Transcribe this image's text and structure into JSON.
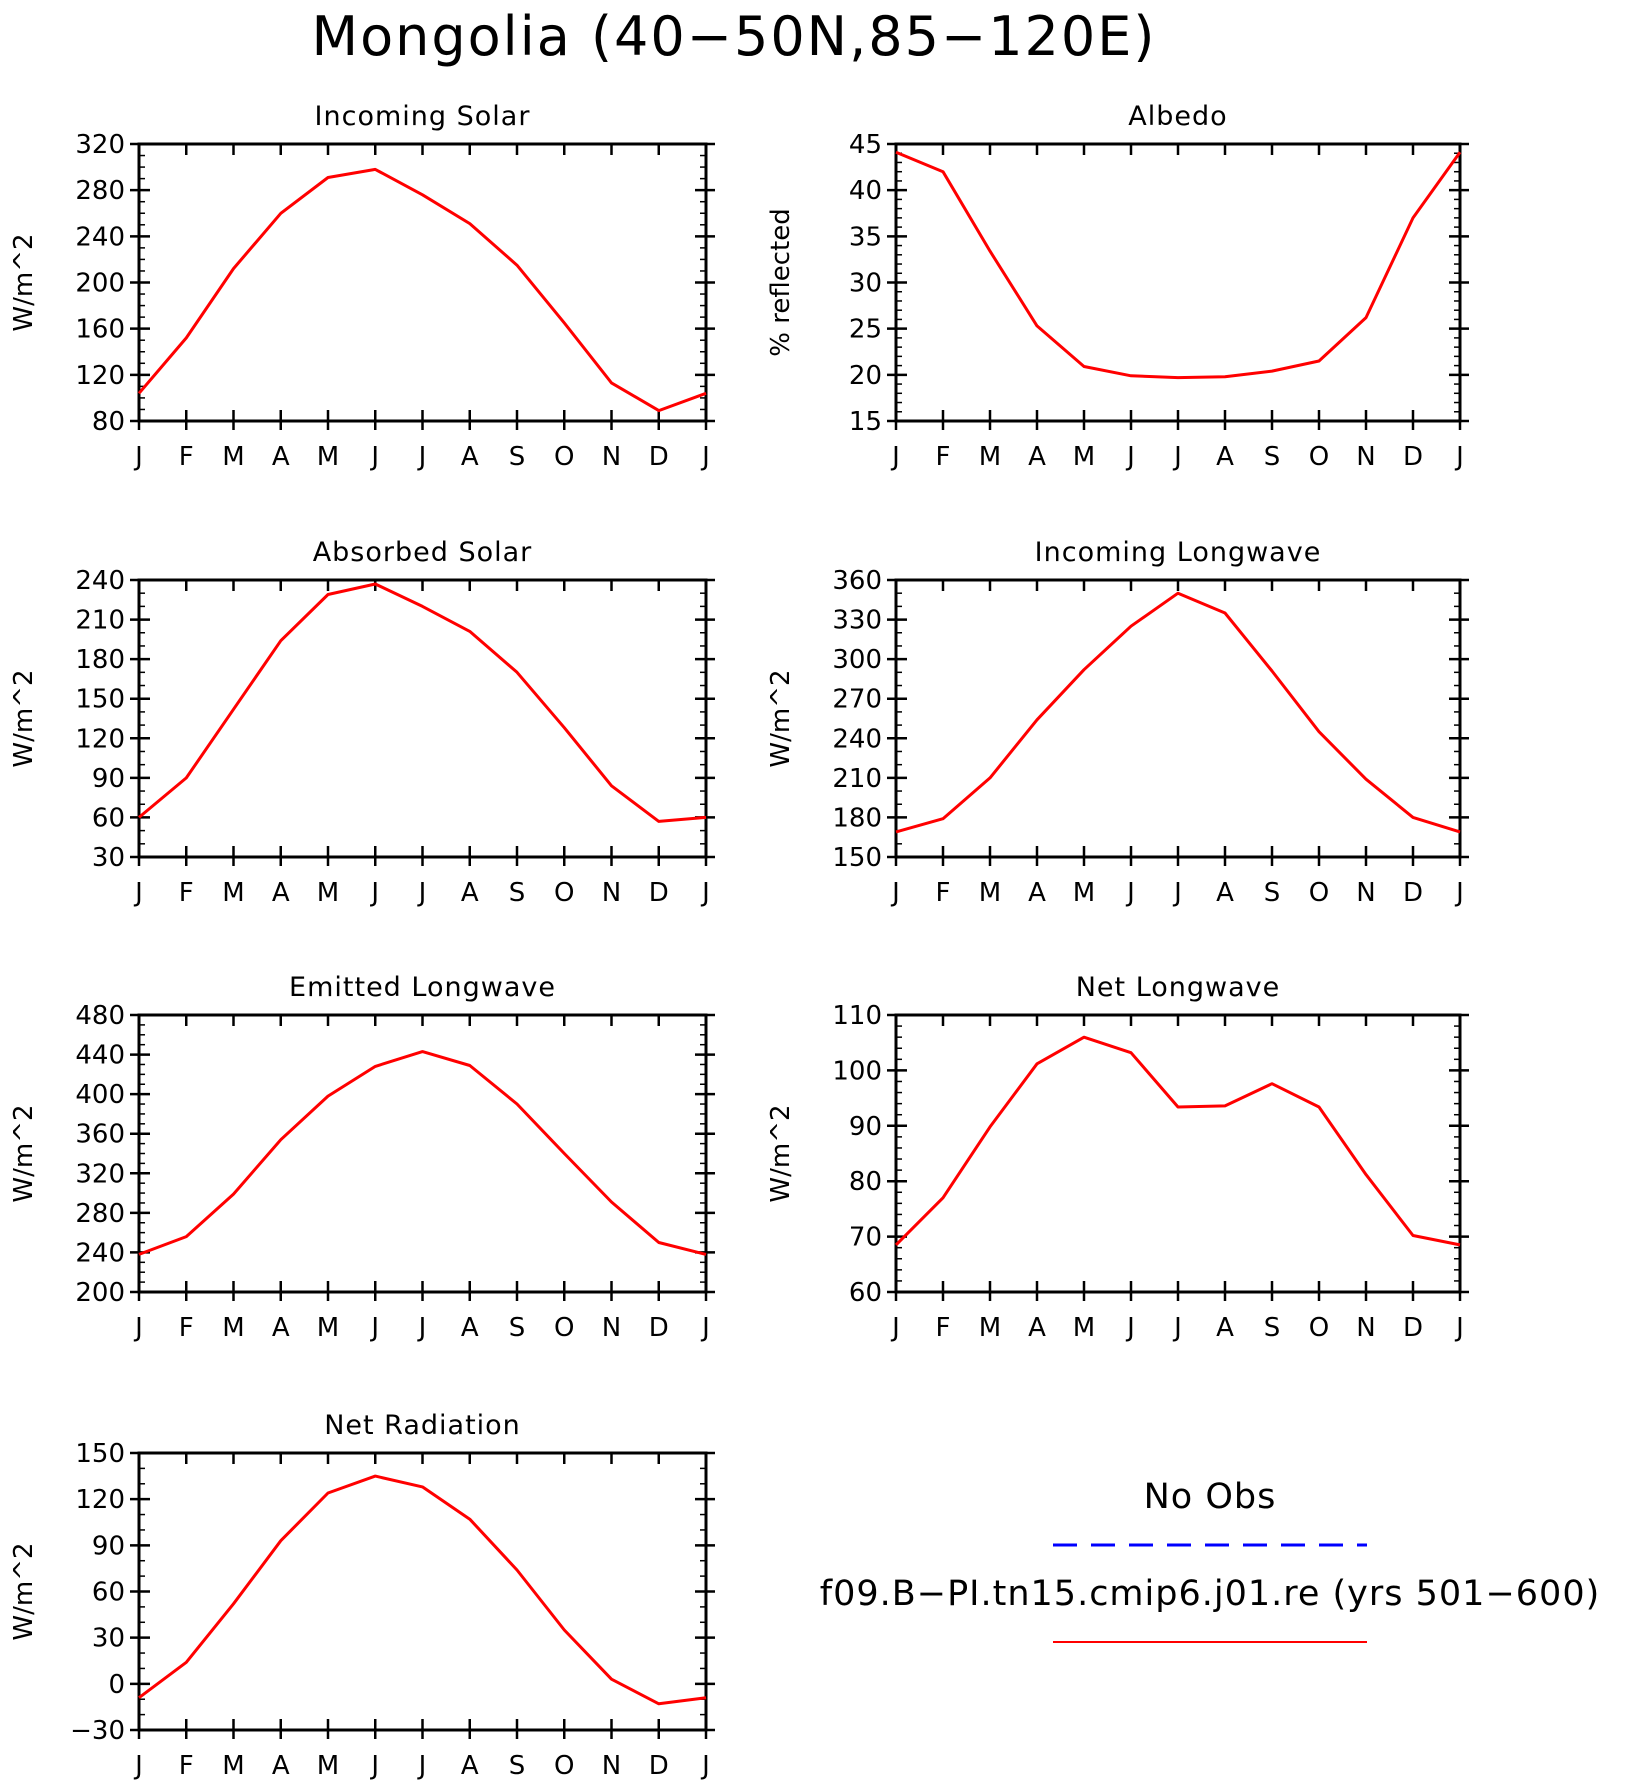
{
  "title": "Mongolia (40−50N,85−120E)",
  "legend": {
    "obs_label": "No Obs",
    "obs_color": "#0000ff",
    "obs_style": "dashed",
    "model_label": "f09.B−PI.tn15.cmip6.j01.re (yrs 501−600)",
    "model_color": "#ff0000",
    "model_style": "solid"
  },
  "chart_data": [
    {
      "type": "line",
      "title": "Incoming Solar",
      "ylabel": "W/m^2",
      "x": [
        "J",
        "F",
        "M",
        "A",
        "M",
        "J",
        "J",
        "A",
        "S",
        "O",
        "N",
        "D",
        "J"
      ],
      "ylim": [
        80,
        320
      ],
      "yticks": [
        80,
        120,
        160,
        200,
        240,
        280,
        320
      ],
      "minor_step": 10,
      "series": [
        {
          "values": [
            104,
            152,
            212,
            260,
            291,
            298,
            276,
            251,
            215,
            165,
            113,
            89,
            104
          ]
        }
      ]
    },
    {
      "type": "line",
      "title": "Albedo",
      "ylabel": "% reflected",
      "x": [
        "J",
        "F",
        "M",
        "A",
        "M",
        "J",
        "J",
        "A",
        "S",
        "O",
        "N",
        "D",
        "J"
      ],
      "ylim": [
        15,
        45
      ],
      "yticks": [
        15,
        20,
        25,
        30,
        35,
        40,
        45
      ],
      "minor_step": 1,
      "series": [
        {
          "values": [
            44.1,
            42.0,
            33.4,
            25.3,
            20.9,
            19.9,
            19.7,
            19.8,
            20.4,
            21.5,
            26.2,
            37.0,
            44.1
          ]
        }
      ]
    },
    {
      "type": "line",
      "title": "Absorbed Solar",
      "ylabel": "W/m^2",
      "x": [
        "J",
        "F",
        "M",
        "A",
        "M",
        "J",
        "J",
        "A",
        "S",
        "O",
        "N",
        "D",
        "J"
      ],
      "ylim": [
        30,
        240
      ],
      "yticks": [
        30,
        60,
        90,
        120,
        150,
        180,
        210,
        240
      ],
      "minor_step": 10,
      "series": [
        {
          "values": [
            60,
            90,
            142,
            194,
            229,
            237,
            220,
            201,
            170,
            128,
            84,
            57,
            60
          ]
        }
      ]
    },
    {
      "type": "line",
      "title": "Incoming Longwave",
      "ylabel": "W/m^2",
      "x": [
        "J",
        "F",
        "M",
        "A",
        "M",
        "J",
        "J",
        "A",
        "S",
        "O",
        "N",
        "D",
        "J"
      ],
      "ylim": [
        150,
        360
      ],
      "yticks": [
        150,
        180,
        210,
        240,
        270,
        300,
        330,
        360
      ],
      "minor_step": 10,
      "series": [
        {
          "values": [
            169,
            179,
            210,
            254,
            292,
            325,
            350,
            335,
            291,
            245,
            209,
            180,
            169
          ]
        }
      ]
    },
    {
      "type": "line",
      "title": "Emitted Longwave",
      "ylabel": "W/m^2",
      "x": [
        "J",
        "F",
        "M",
        "A",
        "M",
        "J",
        "J",
        "A",
        "S",
        "O",
        "N",
        "D",
        "J"
      ],
      "ylim": [
        200,
        480
      ],
      "yticks": [
        200,
        240,
        280,
        320,
        360,
        400,
        440,
        480
      ],
      "minor_step": 10,
      "series": [
        {
          "values": [
            238,
            256,
            299,
            354,
            398,
            428,
            443,
            429,
            390,
            340,
            291,
            250,
            238
          ]
        }
      ]
    },
    {
      "type": "line",
      "title": "Net Longwave",
      "ylabel": "W/m^2",
      "x": [
        "J",
        "F",
        "M",
        "A",
        "M",
        "J",
        "J",
        "A",
        "S",
        "O",
        "N",
        "D",
        "J"
      ],
      "ylim": [
        60,
        110
      ],
      "yticks": [
        60,
        70,
        80,
        90,
        100,
        110
      ],
      "minor_step": 2,
      "series": [
        {
          "values": [
            68.5,
            77.0,
            89.8,
            101.2,
            106.0,
            103.2,
            93.4,
            93.6,
            97.6,
            93.4,
            81.2,
            70.2,
            68.5
          ]
        }
      ]
    },
    {
      "type": "line",
      "title": "Net Radiation",
      "ylabel": "W/m^2",
      "x": [
        "J",
        "F",
        "M",
        "A",
        "M",
        "J",
        "J",
        "A",
        "S",
        "O",
        "N",
        "D",
        "J"
      ],
      "ylim": [
        -30,
        150
      ],
      "yticks": [
        -30,
        0,
        30,
        60,
        90,
        120,
        150
      ],
      "minor_step": 10,
      "series": [
        {
          "values": [
            -9,
            14,
            52,
            93,
            124,
            135,
            128,
            107,
            74,
            35,
            3,
            -13,
            -9
          ]
        }
      ]
    }
  ]
}
